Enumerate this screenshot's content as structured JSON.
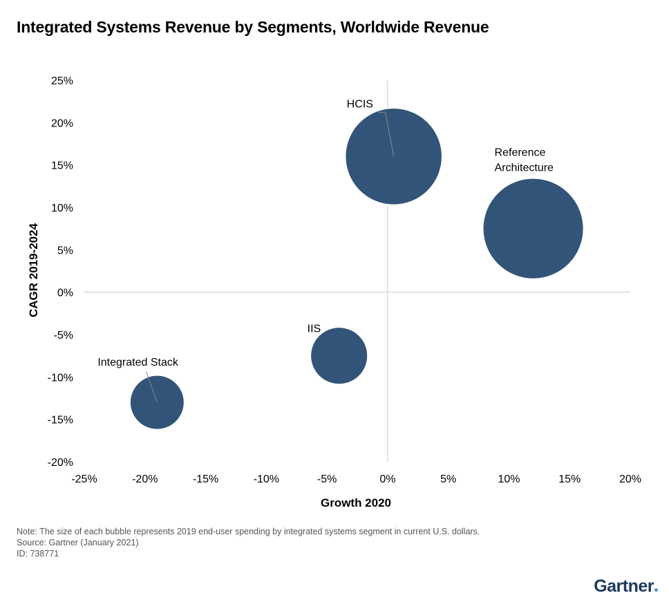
{
  "title": "Integrated Systems Revenue by Segments, Worldwide Revenue",
  "notes": {
    "note": "Note: The size of each bubble represents 2019 end-user spending by integrated systems segment in current U.S. dollars.",
    "source": "Source: Gartner (January 2021)",
    "id": "ID: 738771"
  },
  "logo": "Gartner",
  "colors": {
    "bubble": "#325478",
    "axis": "#c8c8c8",
    "leader": "#8c8c8c"
  },
  "chart_data": {
    "type": "scatter",
    "variant": "bubble",
    "xlabel": "Growth 2020",
    "ylabel": "CAGR 2019-2024",
    "xlim": [
      -25,
      20
    ],
    "ylim": [
      -20,
      25
    ],
    "x_ticks": [
      -25,
      -20,
      -15,
      -10,
      -5,
      0,
      5,
      10,
      15,
      20
    ],
    "y_ticks": [
      25,
      20,
      15,
      10,
      5,
      0,
      -5,
      -10,
      -15,
      -20
    ],
    "x_tick_labels": [
      "-25%",
      "-20%",
      "-15%",
      "-10%",
      "-5%",
      "0%",
      "5%",
      "10%",
      "15%",
      "20%"
    ],
    "y_tick_labels": [
      "25%",
      "20%",
      "15%",
      "10%",
      "5%",
      "0%",
      "-5%",
      "-10%",
      "-15%",
      "-20%"
    ],
    "grid": false,
    "points": [
      {
        "label": "HCIS",
        "x": 0.5,
        "y": 16.0,
        "relative_size": 1.0
      },
      {
        "label": "Reference Architecture",
        "label_lines": [
          "Reference",
          "Architecture"
        ],
        "x": 12.0,
        "y": 7.5,
        "relative_size": 1.04
      },
      {
        "label": "IIS",
        "x": -4.0,
        "y": -7.5,
        "relative_size": 0.59
      },
      {
        "label": "Integrated Stack",
        "x": -19.0,
        "y": -13.0,
        "relative_size": 0.56
      }
    ]
  }
}
